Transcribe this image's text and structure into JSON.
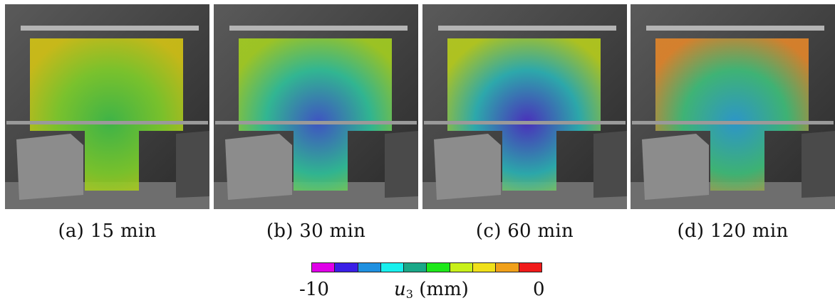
{
  "panels": [
    {
      "caption": "(a) 15 min",
      "field_colors": [
        "#d4c414",
        "#7fcf2a",
        "#3ec048"
      ]
    },
    {
      "caption": "(b) 30 min",
      "field_colors": [
        "#a5d020",
        "#2fc29a",
        "#3f56d0"
      ]
    },
    {
      "caption": "(c) 60 min",
      "field_colors": [
        "#b8cf1c",
        "#2ab3b6",
        "#4b2fc8"
      ]
    },
    {
      "caption": "(d) 120 min",
      "field_colors": [
        "#e3862a",
        "#3ebf7a",
        "#2b9fd6"
      ]
    }
  ],
  "colorbar": {
    "min_label": "-10",
    "max_label": "0",
    "var_symbol": "u",
    "var_subscript": "3",
    "unit": "(mm)",
    "colors": [
      "#e000e8",
      "#3a1fe6",
      "#1f90e0",
      "#18f0ee",
      "#1aa888",
      "#1ee81a",
      "#c8f01a",
      "#f0e01a",
      "#f0a01a",
      "#f01a1a"
    ]
  }
}
